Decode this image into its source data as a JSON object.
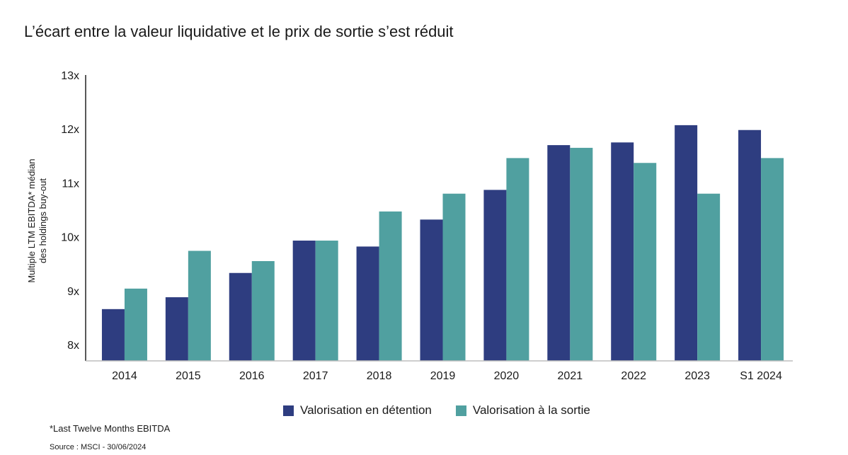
{
  "title": "L’écart entre la valeur liquidative et le prix de sortie s’est réduit",
  "footnote": "*Last Twelve Months EBITDA",
  "source": "Source : MSCI - 30/06/2024",
  "chart_data": {
    "type": "bar",
    "title": "",
    "ylabel_line1": "Multiple LTM EBITDA* médian",
    "ylabel_line2": "des holdings buy-out",
    "xlabel": "",
    "ylim": [
      7.7,
      13
    ],
    "yticks": [
      8,
      9,
      10,
      11,
      12,
      13
    ],
    "ytick_labels": [
      "8x",
      "9x",
      "10x",
      "11x",
      "12x",
      "13x"
    ],
    "categories": [
      "2014",
      "2015",
      "2016",
      "2017",
      "2018",
      "2019",
      "2020",
      "2021",
      "2022",
      "2023",
      "S1 2024"
    ],
    "series": [
      {
        "name": "Valorisation en détention",
        "color": "#2e3d80",
        "values": [
          8.66,
          8.88,
          9.33,
          9.93,
          9.82,
          10.32,
          10.87,
          11.7,
          11.75,
          12.07,
          11.98
        ]
      },
      {
        "name": "Valorisation à la sortie",
        "color": "#50a0a0",
        "values": [
          9.04,
          9.74,
          9.55,
          9.93,
          10.47,
          10.8,
          11.46,
          11.65,
          11.37,
          10.8,
          11.46
        ]
      }
    ],
    "grid": false,
    "legend_position": "bottom"
  }
}
